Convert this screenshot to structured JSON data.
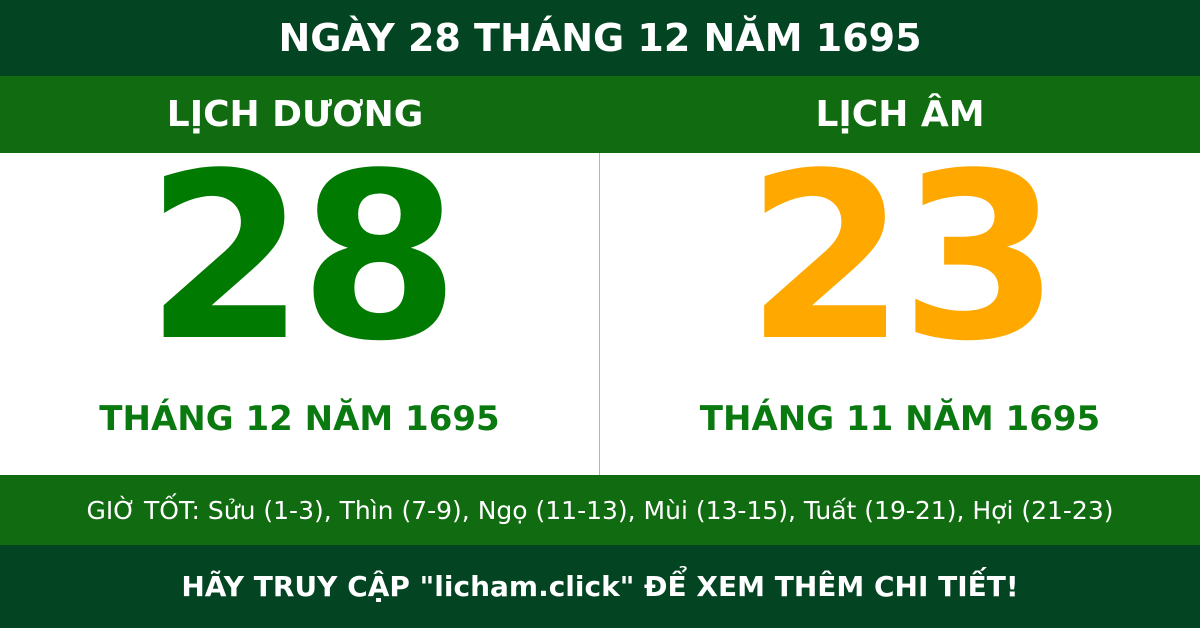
{
  "title": "NGÀY 28 THÁNG 12 NĂM 1695",
  "solar": {
    "heading": "LỊCH DƯƠNG",
    "day": "28",
    "month_year": "THÁNG 12 NĂM 1695",
    "color": "#007a00"
  },
  "lunar": {
    "heading": "LỊCH ÂM",
    "day": "23",
    "month_year": "THÁNG 11 NĂM 1695",
    "color": "#ffa800"
  },
  "good_hours": "GIỜ TỐT: Sửu (1-3), Thìn (7-9), Ngọ (11-13), Mùi (13-15), Tuất (19-21), Hợi (21-23)",
  "footer": "HÃY TRUY CẬP \"licham.click\" ĐỂ XEM THÊM CHI TIẾT!"
}
